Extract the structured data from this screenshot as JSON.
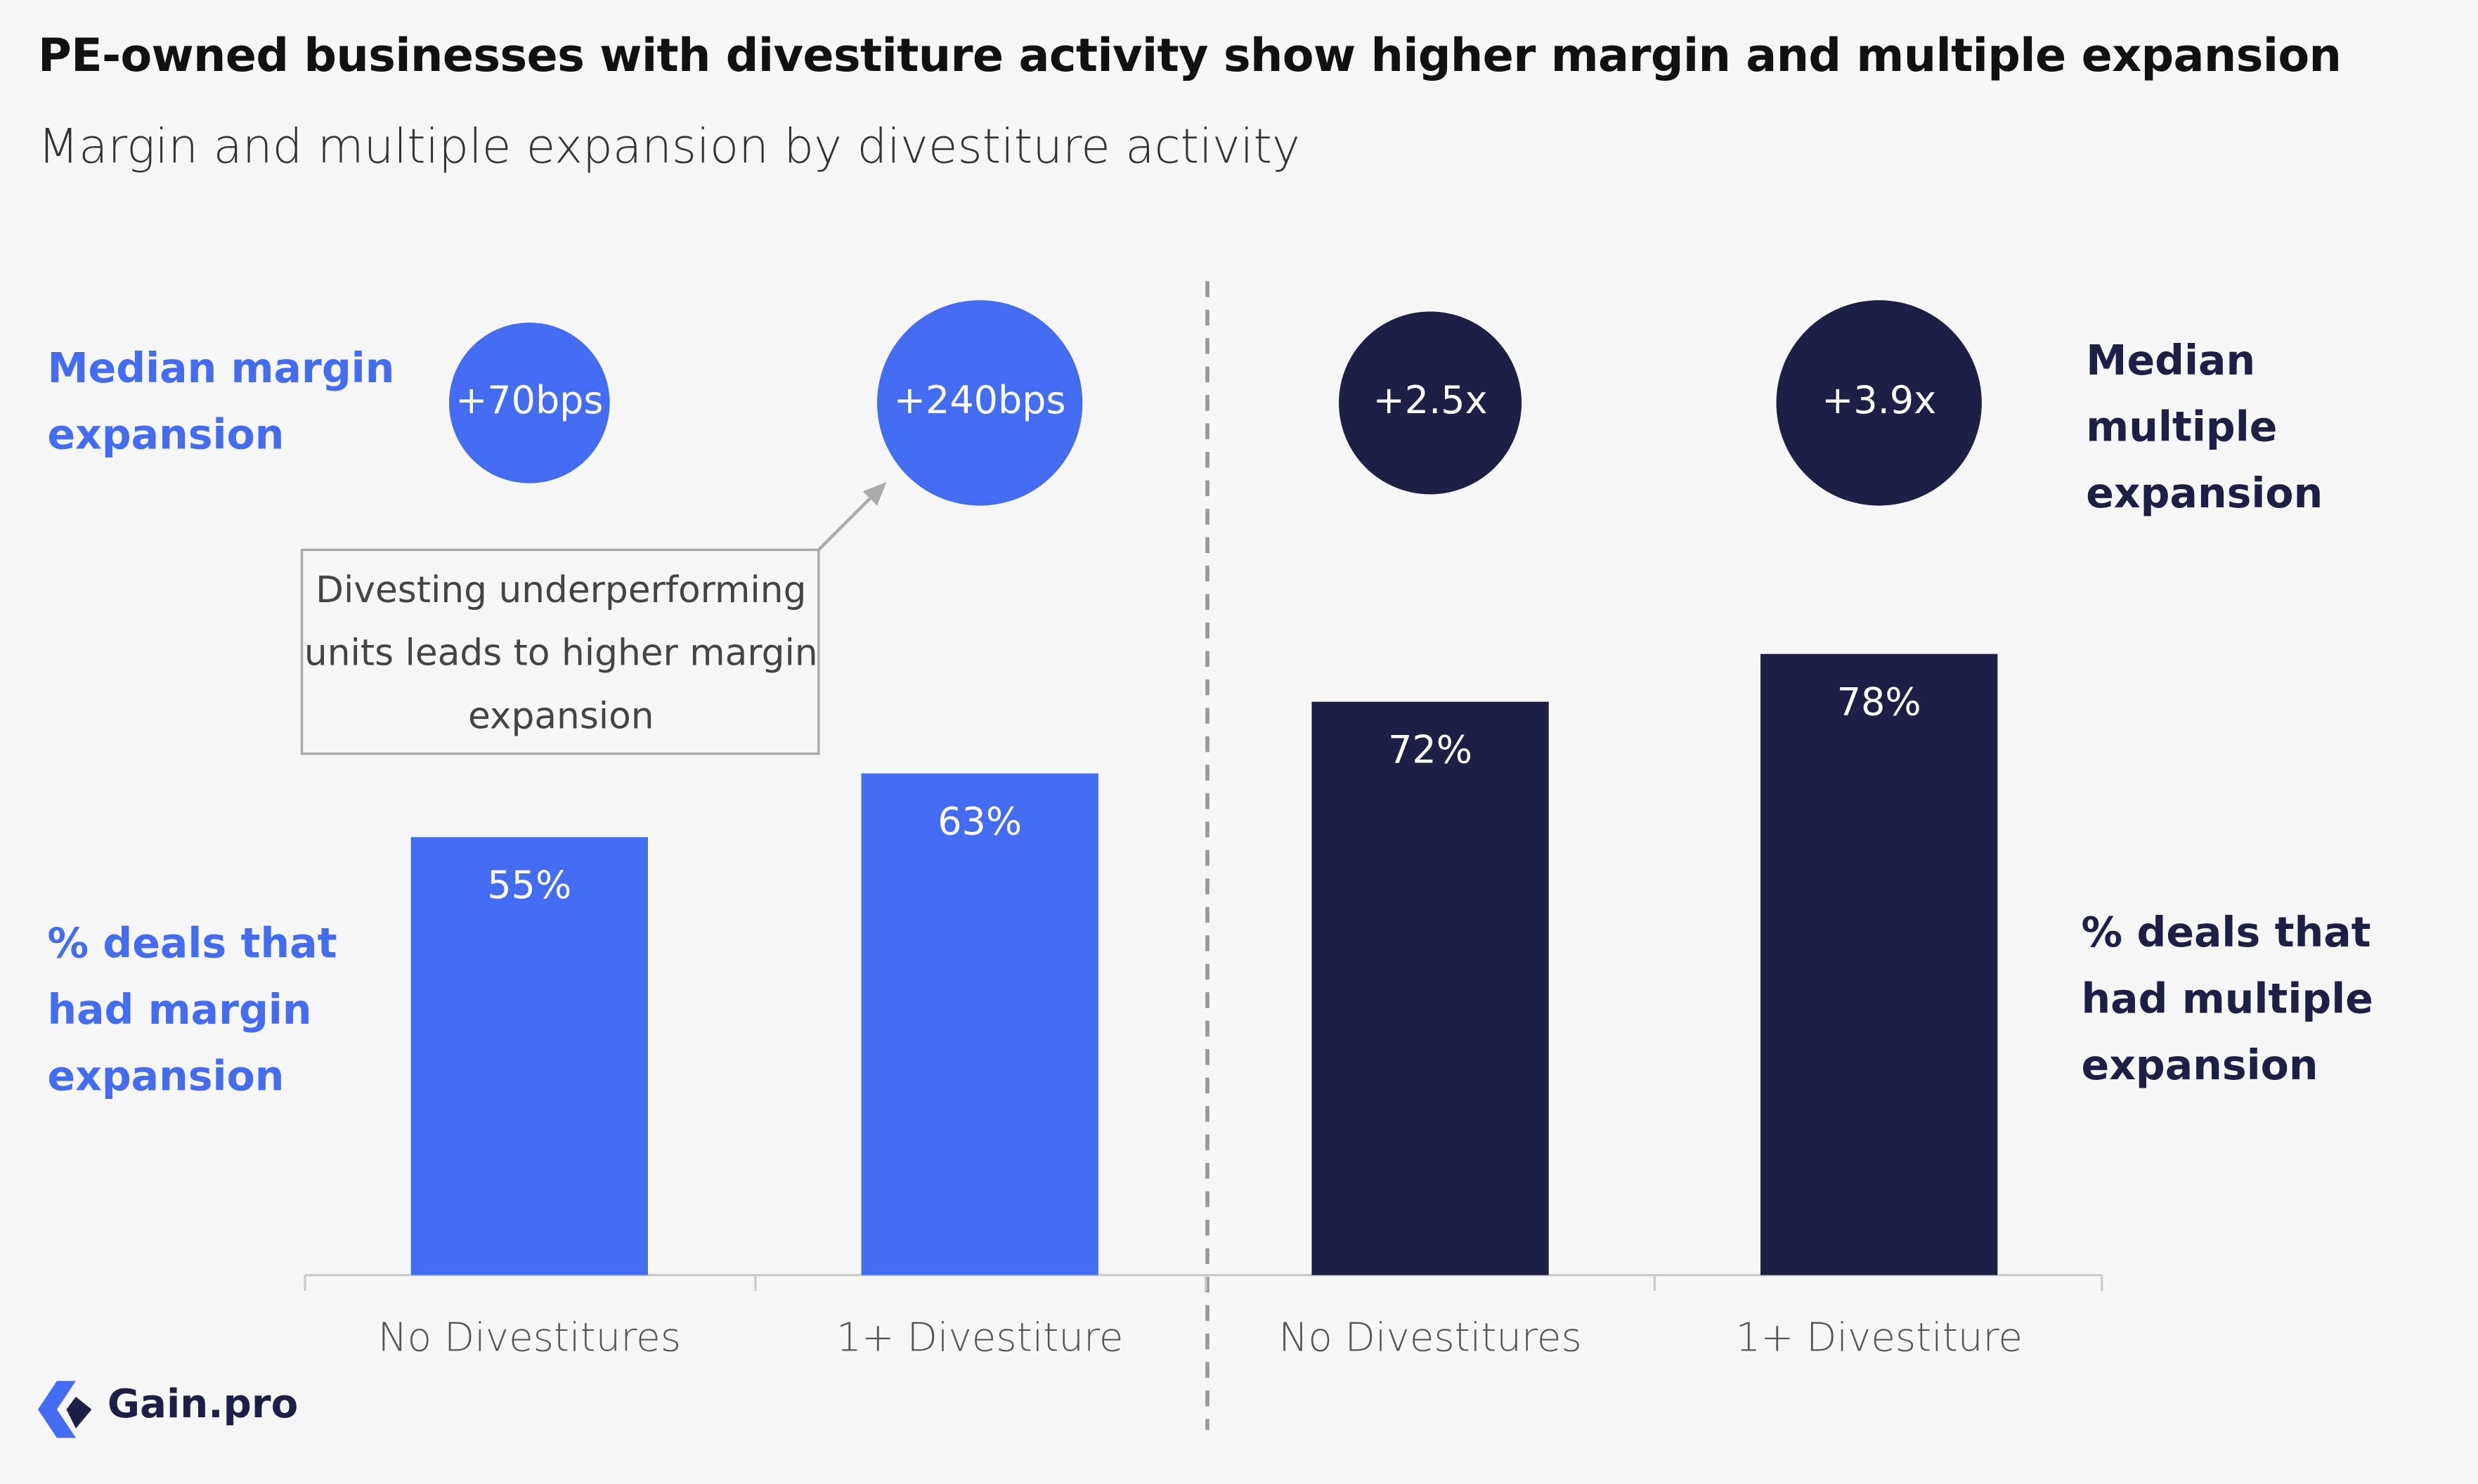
{
  "title": "PE-owned businesses with divestiture activity show higher margin and multiple expansion",
  "subtitle": "Margin and multiple expansion by divestiture activity",
  "logo": "Gain.pro",
  "chart_data": [
    {
      "type": "bar",
      "categories": [
        "No Divestitures",
        "1+ Divestiture"
      ],
      "values": [
        55,
        63
      ],
      "value_labels": [
        "55%",
        "63%"
      ],
      "color": "#436cf0",
      "bar_label": "% deals that had margin expansion",
      "bubbles": {
        "name": "Median margin expansion",
        "values": [
          70,
          240
        ],
        "value_labels": [
          "+70bps",
          "+240bps"
        ],
        "color": "#436cf0"
      },
      "annotation": "Divesting underperforming units leads to higher margin expansion"
    },
    {
      "type": "bar",
      "categories": [
        "No Divestitures",
        "1+ Divestiture"
      ],
      "values": [
        72,
        78
      ],
      "value_labels": [
        "72%",
        "78%"
      ],
      "color": "#1d1f45",
      "bar_label": "% deals that had multiple expansion",
      "bubbles": {
        "name": "Median multiple expansion",
        "values": [
          2.5,
          3.9
        ],
        "value_labels": [
          "+2.5x",
          "+3.9x"
        ],
        "color": "#1d1f45"
      }
    }
  ]
}
